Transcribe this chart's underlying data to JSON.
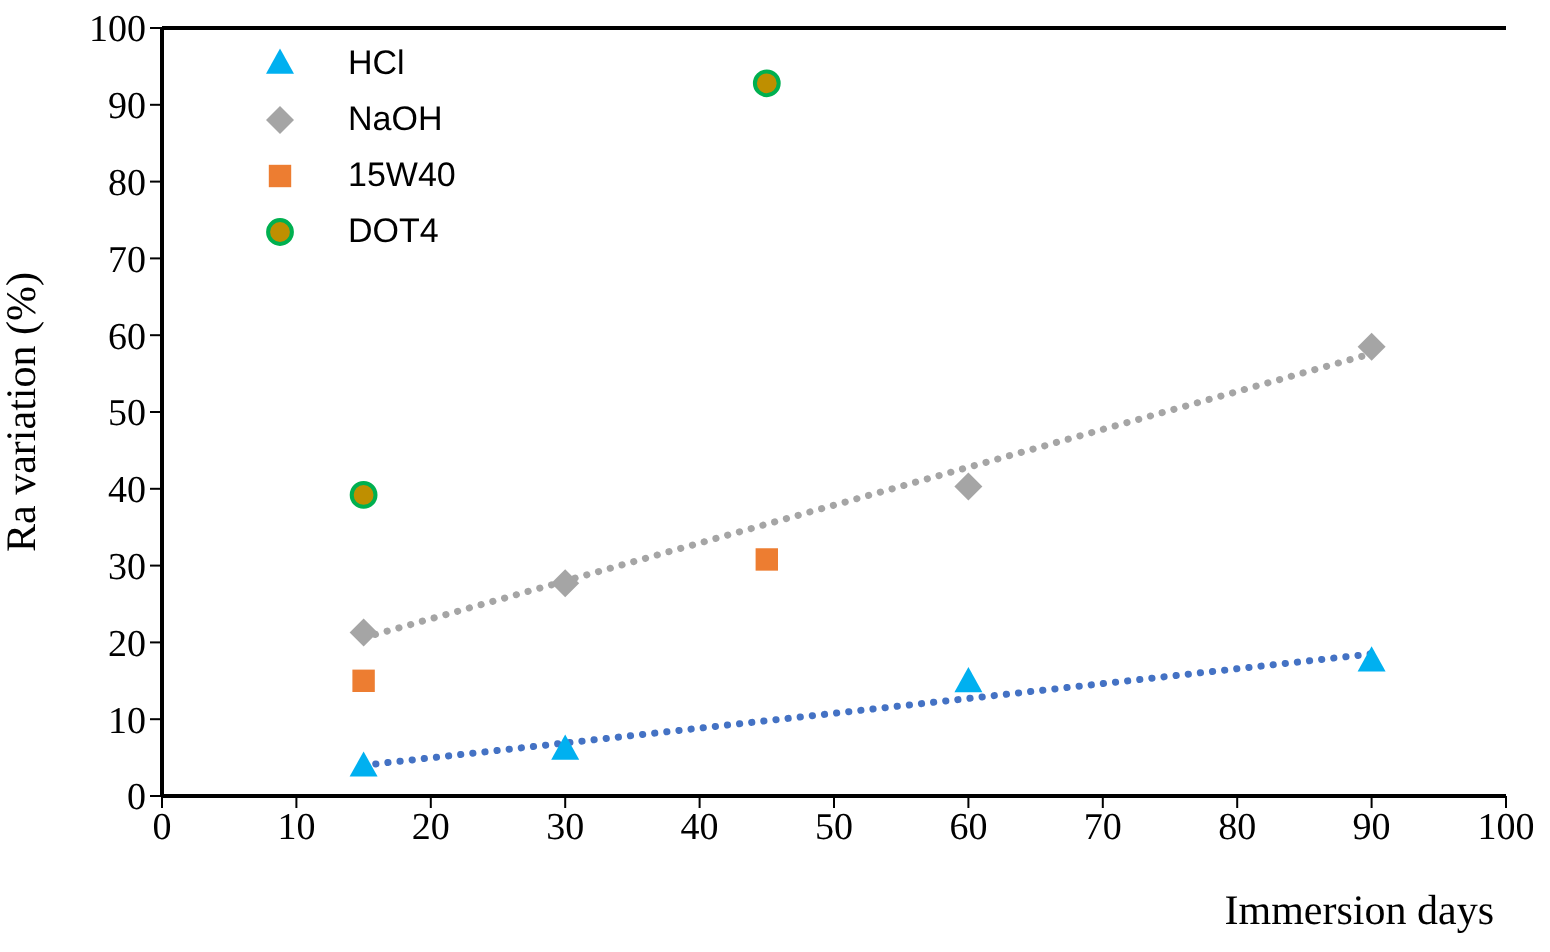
{
  "chart_data": {
    "type": "scatter",
    "xlabel": "Immersion days",
    "ylabel": "Ra variation (%)",
    "xlim": [
      0,
      100
    ],
    "xticks": [
      0,
      10,
      20,
      30,
      40,
      50,
      60,
      70,
      80,
      90,
      100
    ],
    "ylim": [
      0,
      100
    ],
    "yticks": [
      0,
      10,
      20,
      30,
      40,
      50,
      60,
      70,
      80,
      90,
      100
    ],
    "legend": "top left",
    "series": [
      {
        "name": "HCl",
        "color": "#00b0f0",
        "marker": "triangle",
        "x": [
          15,
          30,
          60,
          90
        ],
        "values": [
          3.8,
          6,
          14.8,
          17.5
        ]
      },
      {
        "name": "NaOH",
        "color": "#a5a5a5",
        "marker": "diamond",
        "x": [
          15,
          30,
          60,
          90
        ],
        "values": [
          21.3,
          27.7,
          40.3,
          58.5
        ]
      },
      {
        "name": "15W40",
        "color": "#ed7d31",
        "marker": "square",
        "x": [
          15,
          45
        ],
        "values": [
          15,
          30.8
        ]
      },
      {
        "name": "DOT4",
        "color": "#bf8f00",
        "marker": "circle",
        "x": [
          15,
          45
        ],
        "values": [
          39.2,
          92.8
        ]
      },
      {
        "type": "line",
        "color": "#4472c4",
        "line_style": "dotted",
        "marker": "none",
        "x": [
          15,
          90
        ],
        "values": [
          4,
          18.5
        ]
      },
      {
        "type": "line",
        "color": "#a5a5a5",
        "line_style": "dotted",
        "marker": "none",
        "x": [
          15,
          90
        ],
        "values": [
          20.6,
          57.6
        ]
      }
    ]
  }
}
